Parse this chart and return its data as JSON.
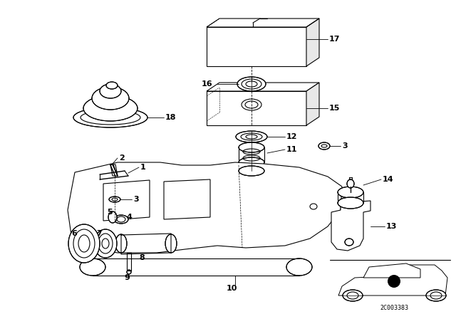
{
  "bg": "#ffffff",
  "lc": "#000000",
  "watermark": "2C003383",
  "lw": 0.8
}
